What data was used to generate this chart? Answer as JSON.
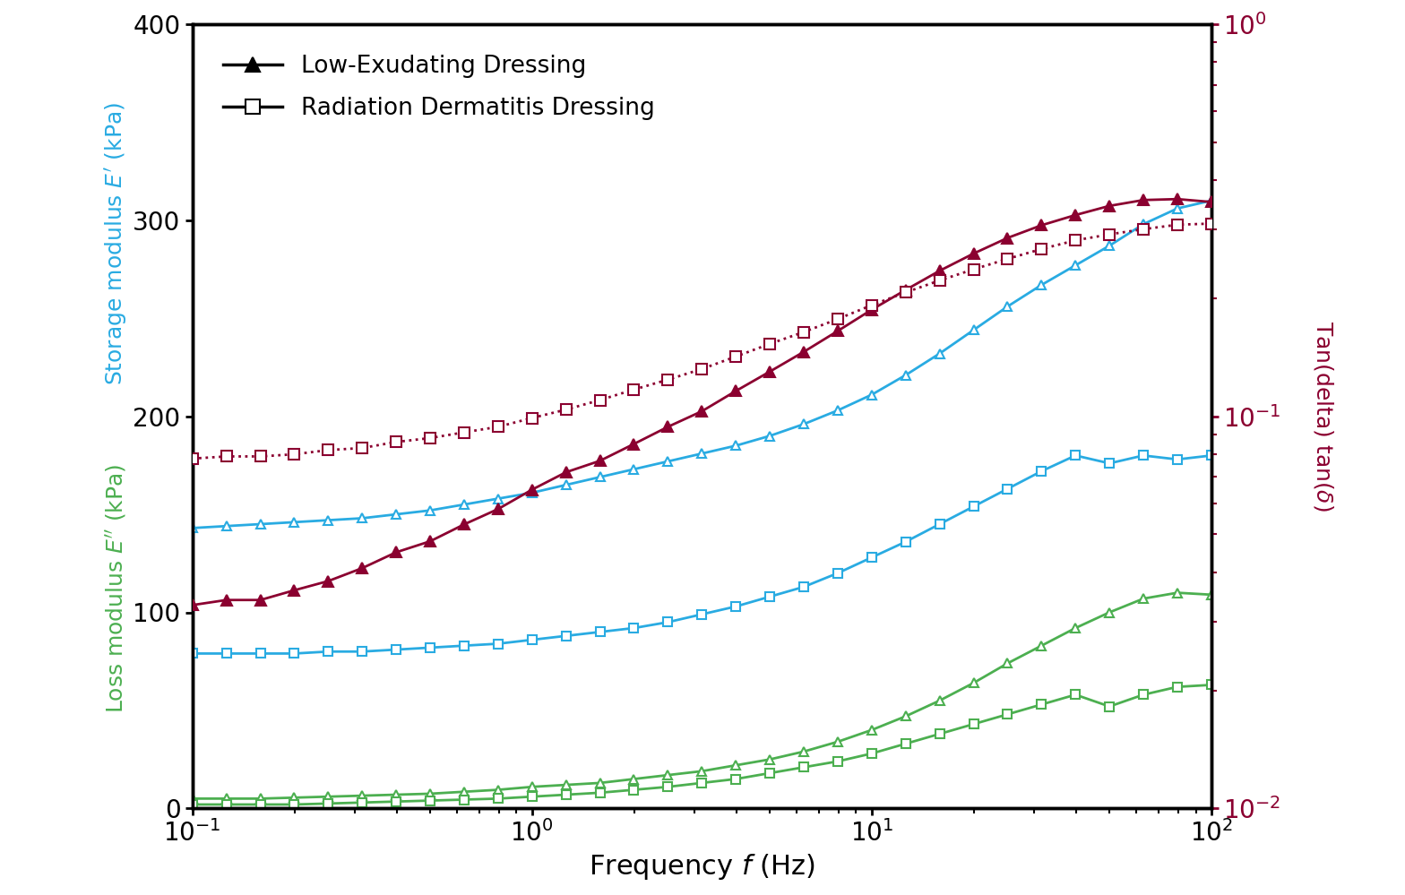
{
  "freq": [
    0.1,
    0.125893,
    0.158489,
    0.199526,
    0.251189,
    0.316228,
    0.398107,
    0.501187,
    0.630957,
    0.794328,
    1.0,
    1.25893,
    1.58489,
    1.99526,
    2.51189,
    3.16228,
    3.98107,
    5.01187,
    6.30957,
    7.94328,
    10.0,
    12.5893,
    15.8489,
    19.9526,
    25.1189,
    31.6228,
    39.8107,
    50.1187,
    63.0957,
    79.4328,
    100.0
  ],
  "low_E_prime": [
    143,
    144,
    145,
    146,
    147,
    148,
    150,
    152,
    155,
    158,
    161,
    165,
    169,
    173,
    177,
    181,
    185,
    190,
    196,
    203,
    211,
    221,
    232,
    244,
    256,
    267,
    277,
    287,
    298,
    306,
    310
  ],
  "low_E_double_prime": [
    5,
    5,
    5,
    5.5,
    6,
    6.5,
    7,
    7.5,
    8.5,
    9.5,
    11,
    12,
    13,
    15,
    17,
    19,
    22,
    25,
    29,
    34,
    40,
    47,
    55,
    64,
    74,
    83,
    92,
    100,
    107,
    110,
    109
  ],
  "low_tan_delta": [
    0.033,
    0.034,
    0.034,
    0.036,
    0.038,
    0.041,
    0.045,
    0.048,
    0.053,
    0.058,
    0.065,
    0.072,
    0.077,
    0.085,
    0.094,
    0.103,
    0.116,
    0.13,
    0.146,
    0.165,
    0.187,
    0.21,
    0.235,
    0.26,
    0.285,
    0.307,
    0.326,
    0.344,
    0.356,
    0.358,
    0.352
  ],
  "rad_E_prime": [
    79,
    79,
    79,
    79,
    80,
    80,
    81,
    82,
    83,
    84,
    86,
    88,
    90,
    92,
    95,
    99,
    103,
    108,
    113,
    120,
    128,
    136,
    145,
    154,
    163,
    172,
    180,
    176,
    180,
    178,
    180
  ],
  "rad_E_double_prime": [
    2,
    2,
    2,
    2,
    2.5,
    3,
    3.5,
    4,
    4.5,
    5,
    6,
    7,
    8,
    9.5,
    11,
    13,
    15,
    18,
    21,
    24,
    28,
    33,
    38,
    43,
    48,
    53,
    58,
    52,
    58,
    62,
    63
  ],
  "rad_tan_delta": [
    0.078,
    0.079,
    0.079,
    0.08,
    0.082,
    0.083,
    0.086,
    0.088,
    0.091,
    0.094,
    0.099,
    0.104,
    0.11,
    0.117,
    0.124,
    0.132,
    0.142,
    0.153,
    0.164,
    0.177,
    0.192,
    0.207,
    0.222,
    0.237,
    0.252,
    0.267,
    0.281,
    0.291,
    0.3,
    0.308,
    0.31
  ],
  "color_blue": "#29ABE2",
  "color_dark_red": "#8B0030",
  "color_green": "#4CAF50",
  "xlabel": "Frequency f (Hz)",
  "ylabel_left_top": "Storage modulus ᴇ′ (kPa)",
  "ylabel_left_bottom": "Loss modulus ᴇ″ (kPa)",
  "ylabel_right": "Tan(delta) tan(δ)",
  "legend_label_low": "Low-Exudating Dressing",
  "legend_label_rad": "Radiation Dermatitis Dressing",
  "ylim_left": [
    0,
    400
  ],
  "xlim": [
    0.1,
    100
  ],
  "right_ylim": [
    0.01,
    1.0
  ]
}
